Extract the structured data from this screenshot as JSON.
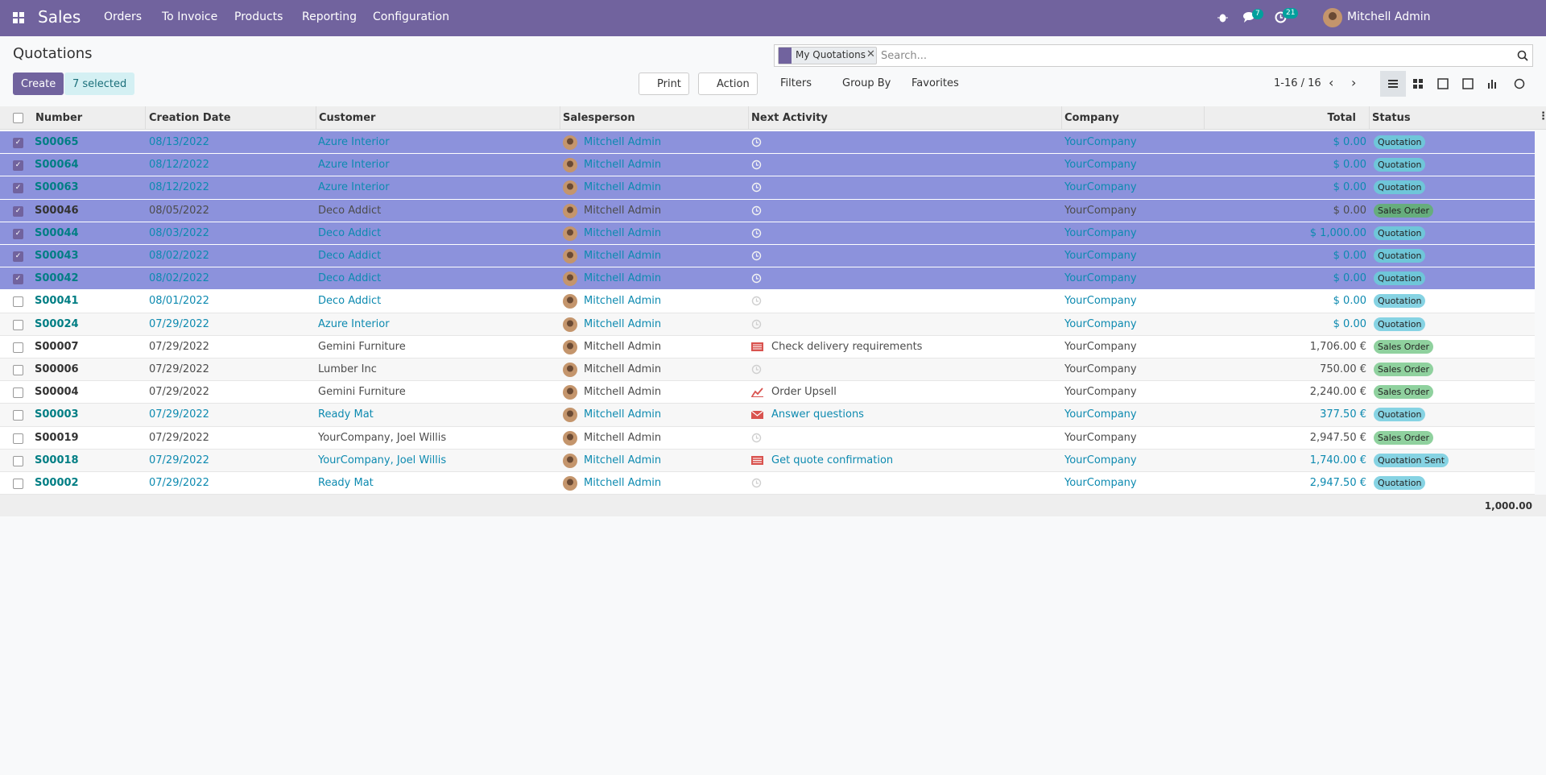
{
  "navbar": {
    "app": "Sales",
    "menu": [
      "Orders",
      "To Invoice",
      "Products",
      "Reporting",
      "Configuration"
    ],
    "messages": 7,
    "activities": 21,
    "user": "Mitchell Admin"
  },
  "control_panel": {
    "title": "Quotations",
    "create": "Create",
    "selection": "7 selected",
    "print": "Print",
    "action": "Action",
    "facet": "My Quotations",
    "search_placeholder": "Search...",
    "filters": "Filters",
    "group_by": "Group By",
    "favorites": "Favorites",
    "pager": "1-16 / 16"
  },
  "table": {
    "columns": [
      "Number",
      "Creation Date",
      "Customer",
      "Salesperson",
      "Next Activity",
      "Company",
      "Total",
      "Status"
    ],
    "rows": [
      {
        "selected": true,
        "info": true,
        "activity_icon": "clock",
        "status_color": "#6fc6d9",
        "number": "S00065",
        "date": "08/13/2022",
        "customer": "Azure Interior",
        "salesperson": "Mitchell Admin",
        "company": "YourCompany",
        "total": "$ 0.00",
        "status": "Quotation"
      },
      {
        "selected": true,
        "info": true,
        "activity_icon": "clock",
        "status_color": "#6fc6d9",
        "number": "S00064",
        "date": "08/12/2022",
        "customer": "Azure Interior",
        "salesperson": "Mitchell Admin",
        "company": "YourCompany",
        "total": "$ 0.00",
        "status": "Quotation"
      },
      {
        "selected": true,
        "info": true,
        "activity_icon": "clock",
        "status_color": "#6fc6d9",
        "number": "S00063",
        "date": "08/12/2022",
        "customer": "Azure Interior",
        "salesperson": "Mitchell Admin",
        "company": "YourCompany",
        "total": "$ 0.00",
        "status": "Quotation"
      },
      {
        "selected": true,
        "info": false,
        "activity_icon": "clock",
        "status_color": "#66ad7d",
        "number": "S00046",
        "date": "08/05/2022",
        "customer": "Deco Addict",
        "salesperson": "Mitchell Admin",
        "company": "YourCompany",
        "total": "$ 0.00",
        "status": "Sales Order"
      },
      {
        "selected": true,
        "info": true,
        "activity_icon": "clock",
        "status_color": "#6fc6d9",
        "number": "S00044",
        "date": "08/03/2022",
        "customer": "Deco Addict",
        "salesperson": "Mitchell Admin",
        "company": "YourCompany",
        "total": "$ 1,000.00",
        "status": "Quotation"
      },
      {
        "selected": true,
        "info": true,
        "activity_icon": "clock",
        "status_color": "#6fc6d9",
        "number": "S00043",
        "date": "08/02/2022",
        "customer": "Deco Addict",
        "salesperson": "Mitchell Admin",
        "company": "YourCompany",
        "total": "$ 0.00",
        "status": "Quotation"
      },
      {
        "selected": true,
        "info": true,
        "activity_icon": "clock",
        "status_color": "#6fc6d9",
        "number": "S00042",
        "date": "08/02/2022",
        "customer": "Deco Addict",
        "salesperson": "Mitchell Admin",
        "company": "YourCompany",
        "total": "$ 0.00",
        "status": "Quotation"
      },
      {
        "selected": false,
        "info": true,
        "activity_icon": "clock",
        "status_color": "#86d3e3",
        "number": "S00041",
        "date": "08/01/2022",
        "customer": "Deco Addict",
        "salesperson": "Mitchell Admin",
        "company": "YourCompany",
        "total": "$ 0.00",
        "status": "Quotation"
      },
      {
        "selected": false,
        "info": true,
        "activity_icon": "clock",
        "status_color": "#86d3e3",
        "number": "S00024",
        "date": "07/29/2022",
        "customer": "Azure Interior",
        "salesperson": "Mitchell Admin",
        "company": "YourCompany",
        "total": "$ 0.00",
        "status": "Quotation"
      },
      {
        "selected": false,
        "info": false,
        "activity_icon": "list",
        "activity": "Check delivery requirements",
        "status_color": "#8fd19e",
        "number": "S00007",
        "date": "07/29/2022",
        "customer": "Gemini Furniture",
        "salesperson": "Mitchell Admin",
        "company": "YourCompany",
        "total": "1,706.00 €",
        "status": "Sales Order"
      },
      {
        "selected": false,
        "info": false,
        "activity_icon": "clock",
        "status_color": "#8fd19e",
        "number": "S00006",
        "date": "07/29/2022",
        "customer": "Lumber Inc",
        "salesperson": "Mitchell Admin",
        "company": "YourCompany",
        "total": "750.00 €",
        "status": "Sales Order"
      },
      {
        "selected": false,
        "info": false,
        "activity_icon": "chart",
        "activity": "Order Upsell",
        "status_color": "#8fd19e",
        "number": "S00004",
        "date": "07/29/2022",
        "customer": "Gemini Furniture",
        "salesperson": "Mitchell Admin",
        "company": "YourCompany",
        "total": "2,240.00 €",
        "status": "Sales Order"
      },
      {
        "selected": false,
        "info": true,
        "activity_icon": "mail",
        "activity": "Answer questions",
        "status_color": "#86d3e3",
        "number": "S00003",
        "date": "07/29/2022",
        "customer": "Ready Mat",
        "salesperson": "Mitchell Admin",
        "company": "YourCompany",
        "total": "377.50 €",
        "status": "Quotation"
      },
      {
        "selected": false,
        "info": false,
        "activity_icon": "clock",
        "status_color": "#8fd19e",
        "number": "S00019",
        "date": "07/29/2022",
        "customer": "YourCompany, Joel Willis",
        "salesperson": "Mitchell Admin",
        "company": "YourCompany",
        "total": "2,947.50 €",
        "status": "Sales Order"
      },
      {
        "selected": false,
        "info": true,
        "activity_icon": "list",
        "activity": "Get quote confirmation",
        "status_color": "#86d3e3",
        "number": "S00018",
        "date": "07/29/2022",
        "customer": "YourCompany, Joel Willis",
        "salesperson": "Mitchell Admin",
        "company": "YourCompany",
        "total": "1,740.00 €",
        "status": "Quotation Sent"
      },
      {
        "selected": false,
        "info": true,
        "activity_icon": "clock",
        "status_color": "#86d3e3",
        "number": "S00002",
        "date": "07/29/2022",
        "customer": "Ready Mat",
        "salesperson": "Mitchell Admin",
        "company": "YourCompany",
        "total": "2,947.50 €",
        "status": "Quotation"
      }
    ],
    "total": "1,000.00"
  }
}
